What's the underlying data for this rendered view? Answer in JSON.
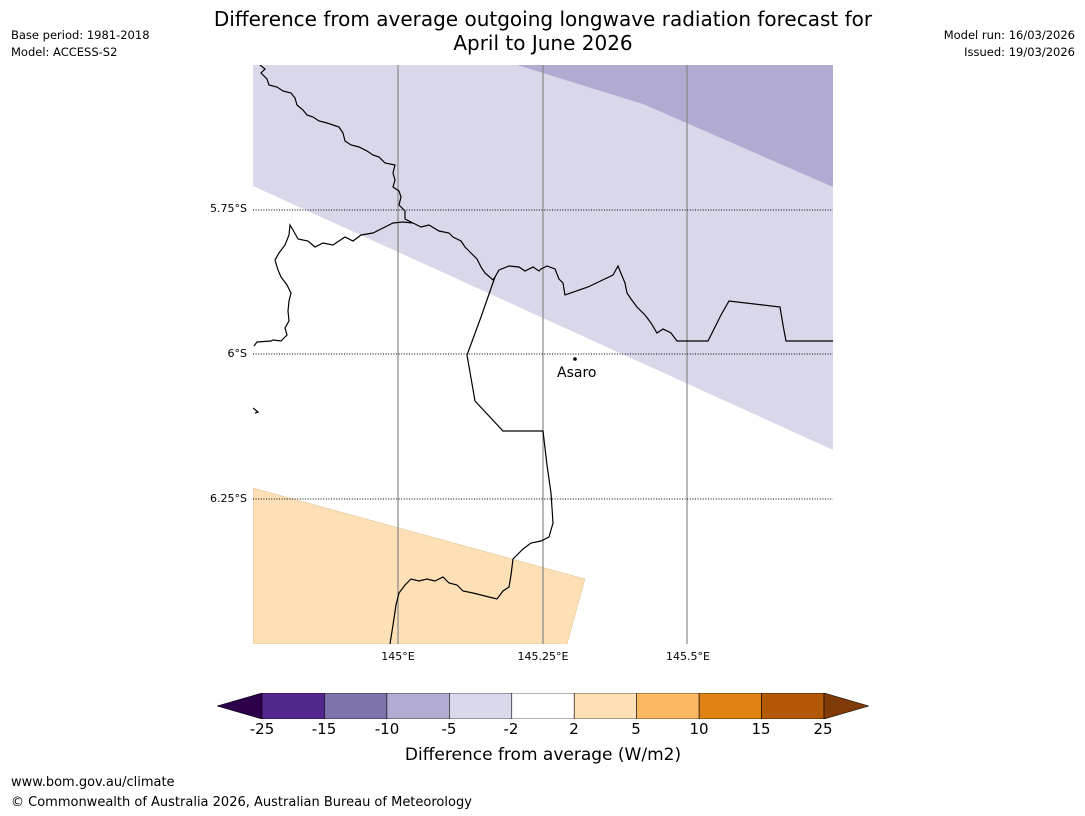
{
  "header": {
    "title_line1": "Difference from average outgoing longwave radiation forecast for",
    "title_line2": "April to June 2026",
    "base_period": "Base period: 1981-2018",
    "model": "Model: ACCESS-S2",
    "model_run": "Model run: 16/03/2026",
    "issued": "Issued: 19/03/2026"
  },
  "map": {
    "lat_labels": [
      "5.75°S",
      "6°S",
      "6.25°S"
    ],
    "lon_labels": [
      "145°E",
      "145.25°E",
      "145.5°E"
    ],
    "place": {
      "name": "Asaro"
    },
    "regions": [
      {
        "name": "band -10 to -5",
        "color": "#b1abd2"
      },
      {
        "name": "band -5 to -2",
        "color": "#d8d8ea"
      },
      {
        "name": "band 2 to 5",
        "color": "#fde0b6"
      }
    ]
  },
  "colorbar": {
    "title": "Difference from average (W/m2)",
    "ticks": [
      "-25",
      "-15",
      "-10",
      "-5",
      "-2",
      "2",
      "5",
      "10",
      "15",
      "25"
    ],
    "colors": [
      "#54278f",
      "#8073ac",
      "#b2abd2",
      "#d8daeb",
      "#ffffff",
      "#fee0b6",
      "#fdb863",
      "#e08214",
      "#b35806"
    ],
    "low_extend_color": "#2d004b",
    "high_extend_color": "#7f3b08"
  },
  "footer": {
    "url": "www.bom.gov.au/climate",
    "copyright": "© Commonwealth of Australia 2026, Australian Bureau of Meteorology"
  }
}
